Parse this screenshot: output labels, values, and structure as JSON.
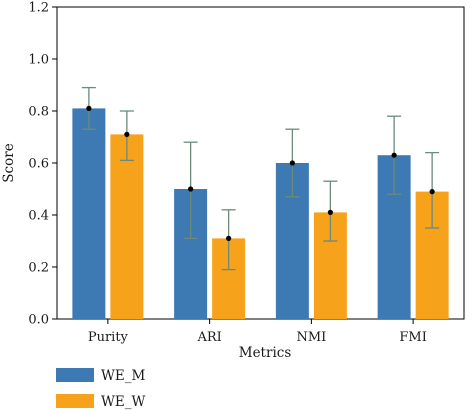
{
  "chart_data": {
    "type": "bar",
    "title": "",
    "xlabel": "Metrics",
    "ylabel": "Score",
    "ylim": [
      0,
      1.2
    ],
    "yticks": [
      0.0,
      0.2,
      0.4,
      0.6,
      0.8,
      1.0,
      1.2
    ],
    "ytick_labels": [
      "0.0",
      "0.2",
      "0.4",
      "0.6",
      "0.8",
      "1.0",
      "1.2"
    ],
    "categories": [
      "Purity",
      "ARI",
      "NMI",
      "FMI"
    ],
    "grid": false,
    "legend_position": "bottom-left, below plot",
    "series": [
      {
        "name": "WE_M",
        "color": "#3d7ab3",
        "values": [
          0.81,
          0.5,
          0.6,
          0.63
        ],
        "error_low": [
          0.73,
          0.31,
          0.47,
          0.48
        ],
        "error_high": [
          0.89,
          0.68,
          0.73,
          0.78
        ]
      },
      {
        "name": "WE_W",
        "color": "#f7a21b",
        "values": [
          0.71,
          0.31,
          0.41,
          0.49
        ],
        "error_low": [
          0.61,
          0.19,
          0.3,
          0.35
        ],
        "error_high": [
          0.8,
          0.42,
          0.53,
          0.64
        ]
      }
    ],
    "error_bar_color": "#6b8a7a",
    "mean_marker_color": "#000000"
  }
}
